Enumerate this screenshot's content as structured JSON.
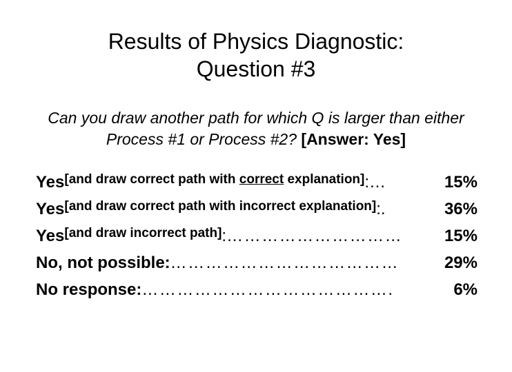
{
  "title": {
    "line1": "Results of Physics Diagnostic:",
    "line2": "Question #3"
  },
  "question": {
    "text_part1": "Can you draw another path for which Q is larger than either Process #1 or Process #2? ",
    "answer_tag": "[Answer: Yes]"
  },
  "rows": [
    {
      "main": "Yes ",
      "bracket_before": "[and draw correct path with ",
      "bracket_underlined": "correct",
      "bracket_after": " explanation]",
      "colon": ": ",
      "leader": "…",
      "pct": "15%"
    },
    {
      "main": "Yes ",
      "bracket_before": "[and draw correct path with incorrect explanation]",
      "bracket_underlined": "",
      "bracket_after": "",
      "colon": ": ",
      "leader": ". ",
      "pct": "36%"
    },
    {
      "main": "Yes ",
      "bracket_before": "[and draw incorrect path]",
      "bracket_underlined": "",
      "bracket_after": "",
      "colon": ": ",
      "leader": "…………………………",
      "pct": "15%"
    },
    {
      "main": "No, not possible: ",
      "bracket_before": "",
      "bracket_underlined": "",
      "bracket_after": "",
      "colon": "",
      "leader": "…………………………………",
      "pct": "29%"
    },
    {
      "main": "No response: ",
      "bracket_before": "",
      "bracket_underlined": "",
      "bracket_after": "",
      "colon": "",
      "leader": "…………………………………….",
      "pct": "6%"
    }
  ],
  "styling": {
    "background_color": "#ffffff",
    "text_color": "#000000",
    "title_fontsize": 32,
    "question_fontsize": 23,
    "row_fontsize": 24,
    "bracket_fontsize": 19,
    "font_family": "Arial"
  }
}
